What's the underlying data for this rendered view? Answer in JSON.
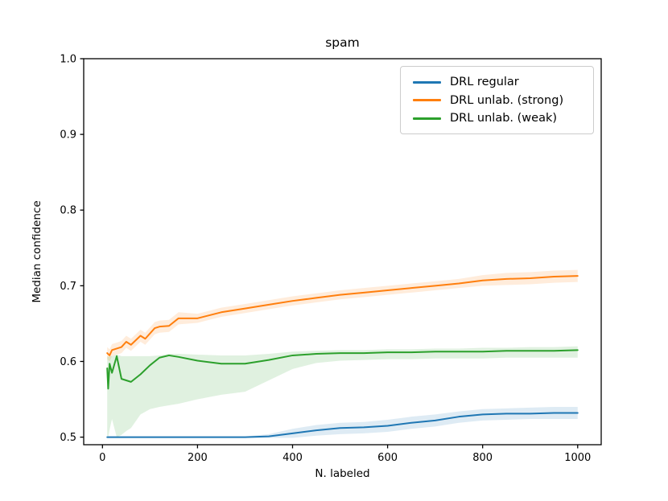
{
  "figure": {
    "background_color": "#ffffff",
    "spine_color": "#000000",
    "legend_border_color": "#cccccc"
  },
  "chart_data": {
    "type": "line",
    "title": "spam",
    "xlabel": "N. labeled",
    "ylabel": "Median confidence",
    "xlim": [
      -39.5,
      1049.5
    ],
    "ylim": [
      0.49,
      1.0
    ],
    "xticks": [
      0,
      200,
      400,
      600,
      800,
      1000
    ],
    "xtick_labels": [
      "0",
      "200",
      "400",
      "600",
      "800",
      "1000"
    ],
    "yticks": [
      0.5,
      0.6,
      0.7,
      0.8,
      0.9,
      1.0
    ],
    "ytick_labels": [
      "0.5",
      "0.6",
      "0.7",
      "0.8",
      "0.9",
      "1.0"
    ],
    "grid": false,
    "legend_position": "upper right",
    "band_alpha": 0.15,
    "series": [
      {
        "name": "DRL regular",
        "color": "#1f77b4",
        "x": [
          10,
          50,
          100,
          150,
          200,
          250,
          300,
          350,
          400,
          450,
          500,
          550,
          600,
          650,
          700,
          750,
          800,
          850,
          900,
          950,
          1000
        ],
        "y": [
          0.5,
          0.5,
          0.5,
          0.5,
          0.5,
          0.5,
          0.5,
          0.501,
          0.505,
          0.509,
          0.512,
          0.513,
          0.515,
          0.519,
          0.522,
          0.527,
          0.53,
          0.531,
          0.531,
          0.532,
          0.532
        ],
        "band_lo": [
          0.499,
          0.499,
          0.499,
          0.499,
          0.499,
          0.499,
          0.499,
          0.499,
          0.499,
          0.502,
          0.504,
          0.505,
          0.507,
          0.511,
          0.514,
          0.519,
          0.522,
          0.523,
          0.524,
          0.524,
          0.524
        ],
        "band_hi": [
          0.501,
          0.501,
          0.501,
          0.501,
          0.501,
          0.501,
          0.501,
          0.504,
          0.511,
          0.516,
          0.519,
          0.52,
          0.523,
          0.527,
          0.53,
          0.534,
          0.537,
          0.538,
          0.539,
          0.54,
          0.54
        ]
      },
      {
        "name": "DRL unlab. (strong)",
        "color": "#ff7f0e",
        "x": [
          10,
          15,
          20,
          30,
          40,
          50,
          60,
          80,
          90,
          110,
          120,
          140,
          160,
          200,
          250,
          300,
          350,
          400,
          450,
          500,
          550,
          600,
          650,
          700,
          750,
          800,
          850,
          900,
          950,
          1000
        ],
        "y": [
          0.611,
          0.608,
          0.615,
          0.617,
          0.619,
          0.626,
          0.622,
          0.634,
          0.63,
          0.644,
          0.646,
          0.647,
          0.657,
          0.657,
          0.665,
          0.67,
          0.675,
          0.68,
          0.684,
          0.688,
          0.691,
          0.694,
          0.697,
          0.7,
          0.703,
          0.707,
          0.709,
          0.71,
          0.712,
          0.713
        ],
        "band_lo": [
          0.603,
          0.6,
          0.607,
          0.609,
          0.611,
          0.618,
          0.614,
          0.626,
          0.622,
          0.636,
          0.638,
          0.639,
          0.649,
          0.651,
          0.659,
          0.664,
          0.669,
          0.674,
          0.678,
          0.682,
          0.685,
          0.688,
          0.691,
          0.694,
          0.697,
          0.7,
          0.701,
          0.702,
          0.704,
          0.705
        ],
        "band_hi": [
          0.619,
          0.616,
          0.623,
          0.625,
          0.627,
          0.634,
          0.63,
          0.642,
          0.638,
          0.652,
          0.654,
          0.655,
          0.665,
          0.663,
          0.671,
          0.676,
          0.681,
          0.686,
          0.69,
          0.694,
          0.697,
          0.7,
          0.703,
          0.706,
          0.709,
          0.714,
          0.717,
          0.718,
          0.72,
          0.721
        ]
      },
      {
        "name": "DRL unlab. (weak)",
        "color": "#2ca02c",
        "x": [
          10,
          12,
          15,
          20,
          30,
          40,
          50,
          60,
          80,
          100,
          120,
          140,
          160,
          200,
          250,
          300,
          350,
          400,
          450,
          500,
          550,
          600,
          650,
          700,
          750,
          800,
          850,
          900,
          950,
          1000
        ],
        "y": [
          0.591,
          0.564,
          0.597,
          0.585,
          0.607,
          0.577,
          0.575,
          0.573,
          0.583,
          0.595,
          0.605,
          0.608,
          0.606,
          0.601,
          0.597,
          0.597,
          0.602,
          0.608,
          0.61,
          0.611,
          0.611,
          0.612,
          0.612,
          0.613,
          0.613,
          0.613,
          0.614,
          0.614,
          0.614,
          0.615
        ],
        "band_lo": [
          0.502,
          0.5,
          0.51,
          0.524,
          0.5,
          0.503,
          0.508,
          0.512,
          0.53,
          0.537,
          0.54,
          0.542,
          0.544,
          0.55,
          0.556,
          0.56,
          0.575,
          0.59,
          0.598,
          0.601,
          0.602,
          0.603,
          0.603,
          0.604,
          0.604,
          0.604,
          0.605,
          0.605,
          0.605,
          0.605
        ],
        "band_hi": [
          0.607,
          0.606,
          0.607,
          0.607,
          0.609,
          0.607,
          0.607,
          0.607,
          0.607,
          0.607,
          0.608,
          0.61,
          0.61,
          0.609,
          0.608,
          0.608,
          0.61,
          0.613,
          0.614,
          0.615,
          0.615,
          0.616,
          0.616,
          0.617,
          0.617,
          0.618,
          0.618,
          0.619,
          0.619,
          0.62
        ]
      }
    ]
  }
}
